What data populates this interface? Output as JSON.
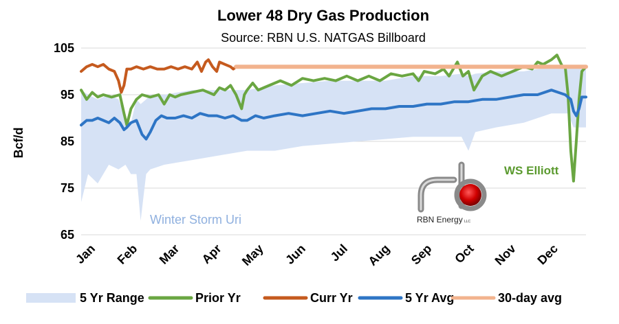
{
  "chart_data": {
    "type": "line",
    "title": "Lower 48 Dry Gas Production",
    "subtitle": "Source: RBN U.S. NATGAS Billboard",
    "ylabel": "Bcf/d",
    "ylim": [
      65,
      105
    ],
    "yticks": [
      65,
      75,
      85,
      95,
      105
    ],
    "grid": "horizontal",
    "legend_placement": "bottom",
    "x_categories": [
      "Jan",
      "Feb",
      "Mar",
      "Apr",
      "May",
      "Jun",
      "Jul",
      "Aug",
      "Sep",
      "Oct",
      "Nov",
      "Dec"
    ],
    "x_domain": [
      0,
      365
    ],
    "range_band": {
      "name": "5 Yr Range",
      "color": "#d6e2f5",
      "x": [
        0,
        5,
        12,
        20,
        27,
        32,
        36,
        40,
        43,
        47,
        50,
        60,
        80,
        100,
        120,
        140,
        160,
        180,
        200,
        220,
        240,
        260,
        275,
        280,
        285,
        300,
        320,
        340,
        352,
        356,
        360,
        365
      ],
      "low": [
        72,
        78,
        76,
        80,
        79,
        80,
        78,
        78,
        68,
        78,
        79,
        80,
        81,
        82,
        83,
        83,
        84,
        84.5,
        85,
        85.5,
        86,
        86,
        86,
        83,
        87,
        88,
        89,
        91,
        91,
        88,
        88,
        88
      ],
      "high": [
        96,
        95,
        94,
        95,
        94,
        90,
        89,
        94,
        93,
        94,
        95,
        95,
        96,
        96,
        96,
        97,
        97.5,
        98,
        98,
        98,
        99,
        99,
        99.5,
        99,
        99.5,
        100,
        100,
        101,
        101,
        101,
        101,
        101
      ]
    },
    "series": [
      {
        "name": "Prior Yr",
        "color": "#6aa642",
        "x": [
          0,
          4,
          8,
          12,
          16,
          22,
          28,
          31,
          33,
          36,
          40,
          44,
          50,
          56,
          60,
          64,
          68,
          72,
          80,
          88,
          96,
          100,
          104,
          108,
          112,
          116,
          118,
          120,
          124,
          128,
          136,
          144,
          152,
          160,
          168,
          176,
          184,
          192,
          200,
          208,
          216,
          224,
          232,
          240,
          244,
          248,
          256,
          262,
          266,
          272,
          276,
          280,
          284,
          290,
          296,
          304,
          312,
          320,
          326,
          330,
          334,
          340,
          344,
          348,
          350,
          352,
          354,
          356,
          358,
          360,
          362,
          365
        ],
        "values": [
          96,
          94,
          95.5,
          94.5,
          95,
          94.5,
          95,
          91,
          88.5,
          92,
          94,
          95,
          94.5,
          95,
          93,
          95,
          94.5,
          95,
          95.5,
          96,
          95,
          96.5,
          96,
          97,
          95,
          92,
          95,
          96,
          97.5,
          96,
          97,
          98,
          97,
          98.5,
          98,
          98.5,
          98,
          99,
          98,
          99,
          98,
          99.5,
          99,
          99.5,
          98,
          100,
          99.5,
          100.5,
          99,
          102,
          99,
          100,
          96,
          99,
          100,
          99,
          100,
          101,
          100.5,
          102,
          101.5,
          102.5,
          103.5,
          101,
          101,
          95,
          83,
          76.5,
          85,
          94,
          100,
          101
        ]
      },
      {
        "name": "Curr Yr",
        "color": "#c55a1e",
        "x": [
          0,
          4,
          8,
          12,
          16,
          20,
          24,
          27,
          29,
          31,
          33,
          36,
          40,
          45,
          50,
          55,
          60,
          65,
          70,
          75,
          80,
          84,
          87,
          90,
          92,
          95,
          98,
          100,
          104,
          108,
          110,
          112
        ],
        "values": [
          100,
          101,
          101.5,
          101,
          101.5,
          100.5,
          100,
          98,
          95.5,
          97,
          100.5,
          100.5,
          101,
          100.5,
          101,
          100.5,
          100.5,
          101,
          100.5,
          101,
          100.5,
          102,
          100,
          102,
          102.5,
          101,
          100,
          102,
          101.5,
          101,
          100.5,
          101
        ]
      },
      {
        "name": "5 Yr Avg",
        "color": "#2e75c5",
        "x": [
          0,
          4,
          8,
          12,
          16,
          20,
          24,
          28,
          31,
          33,
          36,
          40,
          44,
          47,
          50,
          54,
          58,
          62,
          68,
          74,
          80,
          86,
          92,
          98,
          104,
          110,
          116,
          120,
          126,
          132,
          140,
          150,
          160,
          170,
          180,
          190,
          200,
          210,
          220,
          230,
          240,
          250,
          260,
          270,
          280,
          290,
          300,
          310,
          320,
          330,
          340,
          345,
          350,
          352,
          354,
          356,
          358,
          360,
          362,
          365
        ],
        "values": [
          88.5,
          89.5,
          89.5,
          90,
          89.5,
          89,
          90,
          89,
          87.5,
          88,
          89,
          89.5,
          86.5,
          85.5,
          87,
          89.5,
          90.5,
          90,
          90,
          90.5,
          90,
          91,
          90.5,
          90.5,
          90,
          90.5,
          89.5,
          89.5,
          90.5,
          90,
          90.5,
          91,
          90.5,
          91,
          91.5,
          91,
          91.5,
          92,
          92,
          92.5,
          92.5,
          93,
          93,
          93.5,
          93.5,
          94,
          94,
          94.5,
          95,
          95,
          96,
          95.5,
          95,
          94.5,
          94,
          91.5,
          90.5,
          92,
          94.5,
          94.5
        ]
      },
      {
        "name": "30-day avg",
        "color": "#f2b38e",
        "x": [
          112,
          365
        ],
        "values": [
          101,
          101
        ]
      }
    ],
    "legend": [
      {
        "label": "5 Yr Range",
        "kind": "band",
        "color": "#d6e2f5"
      },
      {
        "label": "Prior Yr",
        "kind": "line",
        "color": "#6aa642"
      },
      {
        "label": "Curr Yr",
        "kind": "line",
        "color": "#c55a1e"
      },
      {
        "label": "5 Yr Avg",
        "kind": "line",
        "color": "#2e75c5"
      },
      {
        "label": "30-day avg",
        "kind": "line",
        "color": "#f2b38e"
      }
    ],
    "annotations": [
      {
        "text": "Winter Storm Uri",
        "color": "#8fb0df"
      },
      {
        "text": "WS Elliott",
        "color": "#5b9a2f"
      }
    ]
  },
  "logo": {
    "text": "RBN Energy",
    "suffix": "LLC",
    "accent_color": "#d10000"
  }
}
